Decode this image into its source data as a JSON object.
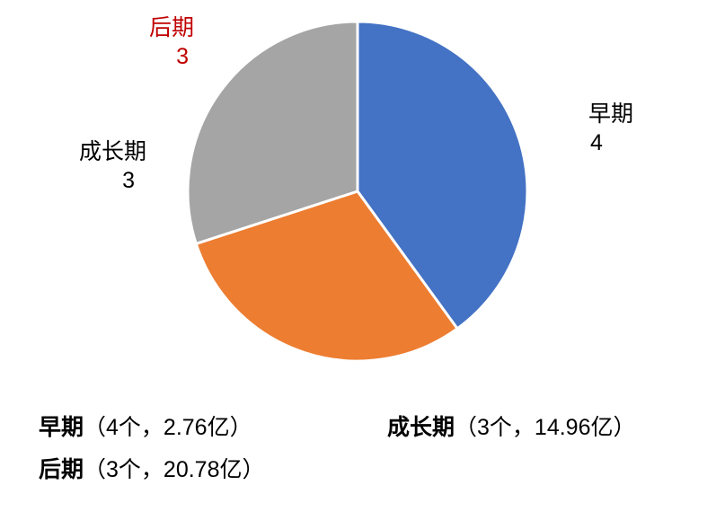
{
  "chart_data": {
    "type": "pie",
    "title": "",
    "categories": [
      "早期",
      "成长期",
      "后期"
    ],
    "values": [
      4,
      3,
      3
    ],
    "slices": [
      {
        "key": "early",
        "label": "早期",
        "count": 4,
        "amount": "2.76亿",
        "color": "#4472C4",
        "label_color": "#000000"
      },
      {
        "key": "growth",
        "label": "成长期",
        "count": 3,
        "amount": "14.96亿",
        "color": "#ED7D31",
        "label_color": "#000000"
      },
      {
        "key": "late",
        "label": "后期",
        "count": 3,
        "amount": "20.78亿",
        "color": "#A5A5A5",
        "label_color": "#C00000"
      }
    ],
    "start_angle_deg": 0,
    "direction": "clockwise",
    "separator_color": "#FFFFFF",
    "legend_position": "bottom",
    "grid": false
  },
  "pie_labels": {
    "early": {
      "name": "早期",
      "value": "4"
    },
    "growth": {
      "name": "成长期",
      "value": "3"
    },
    "late": {
      "name": "后期",
      "value": "3"
    }
  },
  "legend": {
    "early": {
      "name": "早期",
      "detail": "（4个，2.76亿）"
    },
    "growth": {
      "name": "成长期",
      "detail": "（3个，14.96亿）"
    },
    "late": {
      "name": "后期",
      "detail": "（3个，20.78亿）"
    }
  },
  "layout_colors": {
    "background": "#FFFFFF",
    "late_label_red": "#C00000",
    "text_black": "#000000"
  }
}
